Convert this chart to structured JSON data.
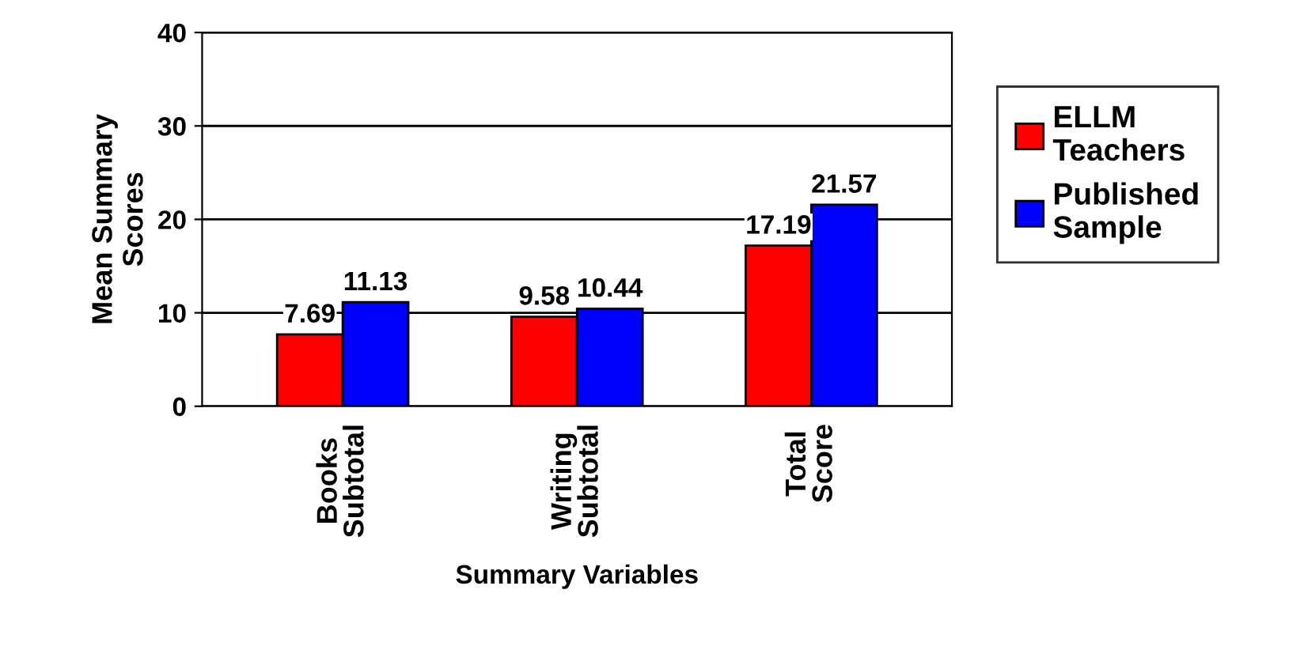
{
  "chart_data": {
    "type": "bar",
    "xlabel": "Summary Variables",
    "ylabel": "Mean Summary Scores",
    "categories": [
      "Books Subtotal",
      "Writing Subtotal",
      "Total Score"
    ],
    "series": [
      {
        "name": "ELLM Teachers",
        "color": "#ff0000",
        "values": [
          7.69,
          9.58,
          17.19
        ]
      },
      {
        "name": "Published Sample",
        "color": "#0000ff",
        "values": [
          11.13,
          10.44,
          21.57
        ]
      }
    ],
    "ylim": [
      0,
      40
    ],
    "yticks": [
      0,
      10,
      20,
      30,
      40
    ],
    "grid": "y",
    "legend": "right",
    "data_labels": true
  }
}
